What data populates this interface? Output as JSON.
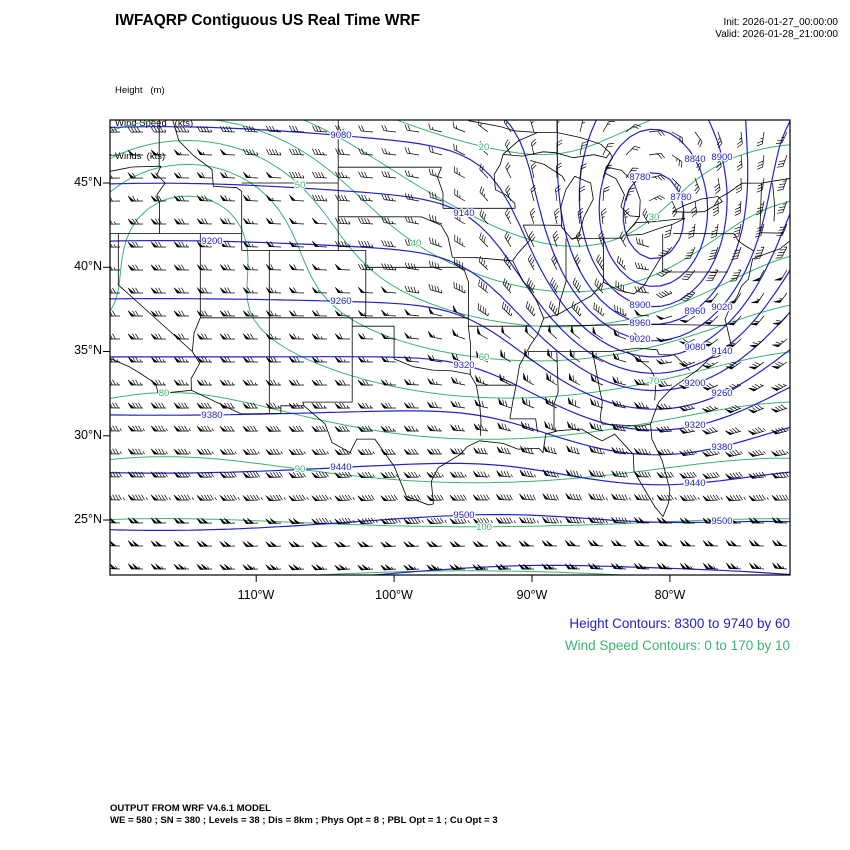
{
  "header": {
    "title": "IWFAQRP Contiguous US Real Time WRF",
    "init": "Init: 2026-01-27_00:00:00",
    "valid": "Valid: 2026-01-28_21:00:00"
  },
  "legend": {
    "height": "Height   (m)",
    "wind_speed": "Wind Speed   (kts)",
    "winds": "Winds  (kts)"
  },
  "axes": {
    "y_ticks": [
      "45°N",
      "40°N",
      "35°N",
      "30°N",
      "25°N"
    ],
    "x_ticks": [
      "110°W",
      "100°W",
      "90°W",
      "80°W"
    ]
  },
  "captions": {
    "height": "Height Contours: 8300 to 9740 by 60",
    "wind": "Wind Speed Contours: 0 to 170 by 10"
  },
  "footer": {
    "line1": "OUTPUT FROM WRF V4.6.1 MODEL",
    "line2": "WE = 580 ; SN = 380 ; Levels = 38 ; Dis = 8km ; Phys Opt = 8 ; PBL Opt = 1 ; Cu Opt = 3"
  },
  "colors": {
    "height_contour": "#2222cc",
    "wind_contour": "#3cb371",
    "geography": "#000000",
    "background": "#ffffff"
  },
  "chart_data": {
    "type": "contour-map",
    "title": "IWFAQRP Contiguous US Real Time WRF",
    "init_time": "2026-01-27_00:00:00",
    "valid_time": "2026-01-28_21:00:00",
    "x_axis": {
      "label": "longitude",
      "ticks": [
        "110°W",
        "100°W",
        "90°W",
        "80°W"
      ]
    },
    "y_axis": {
      "label": "latitude",
      "ticks": [
        "45°N",
        "40°N",
        "35°N",
        "30°N",
        "25°N"
      ]
    },
    "fields": [
      {
        "name": "Height",
        "units": "m",
        "style": "contour",
        "color": "#2222cc",
        "min": 8300,
        "max": 9740,
        "interval": 60,
        "labeled_values": [
          8780,
          9020,
          9080,
          9140,
          9260,
          9380,
          9500
        ]
      },
      {
        "name": "Wind Speed",
        "units": "kts",
        "style": "contour",
        "color": "#3cb371",
        "min": 0,
        "max": 170,
        "interval": 10,
        "labeled_values": [
          30,
          40,
          50,
          60,
          100
        ]
      },
      {
        "name": "Winds",
        "units": "kts",
        "style": "wind-barbs",
        "color": "#000000"
      }
    ],
    "basemap": "US state boundaries with Great Lakes and coastlines"
  }
}
